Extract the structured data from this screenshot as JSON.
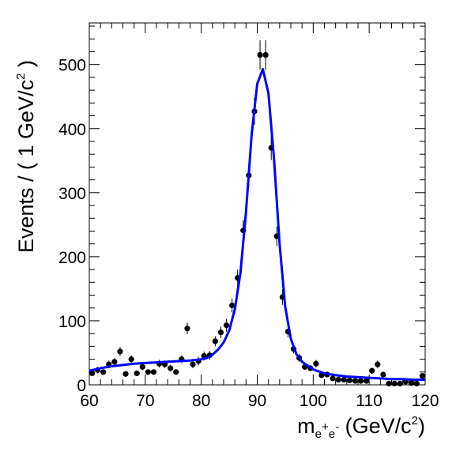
{
  "chart_data": {
    "type": "scatter",
    "xlabel": {
      "main": "m",
      "sub1": "e",
      "sup1": "+",
      "sub2": "e",
      "sup2": "-",
      "unit": " (GeV/c",
      "unit_sup": "2",
      "unit_end": ")"
    },
    "ylabel": {
      "main": "Events / ( 1 GeV/c",
      "sup": "2",
      "end": " )"
    },
    "xlim": [
      60,
      120
    ],
    "ylim": [
      0,
      565
    ],
    "x_ticks": [
      60,
      70,
      80,
      90,
      100,
      110,
      120
    ],
    "y_ticks": [
      0,
      100,
      200,
      300,
      400,
      500
    ],
    "grid": false,
    "colors": {
      "points": "#000000",
      "fit": "#0000ff",
      "axes": "#000000"
    },
    "series": [
      {
        "type": "scatter_errorbars",
        "x": [
          60.5,
          61.5,
          62.5,
          63.5,
          64.5,
          65.5,
          66.5,
          67.5,
          68.5,
          69.5,
          70.5,
          71.5,
          72.5,
          73.5,
          74.5,
          75.5,
          76.5,
          77.5,
          78.5,
          79.5,
          80.5,
          81.5,
          82.5,
          83.5,
          84.5,
          85.5,
          86.5,
          87.5,
          88.5,
          89.5,
          90.5,
          91.5,
          92.5,
          93.5,
          94.5,
          95.5,
          96.5,
          97.5,
          98.5,
          99.5,
          100.5,
          101.5,
          102.5,
          103.5,
          104.5,
          105.5,
          106.5,
          107.5,
          108.5,
          109.5,
          110.5,
          111.5,
          112.5,
          113.5,
          114.5,
          115.5,
          116.5,
          117.5,
          118.5,
          119.5
        ],
        "y": [
          18,
          23,
          20,
          32,
          36,
          52,
          17,
          40,
          18,
          28,
          20,
          20,
          33,
          32,
          26,
          20,
          40,
          88,
          32,
          37,
          45,
          46,
          68,
          82,
          93,
          124,
          167,
          241,
          327,
          427,
          515,
          515,
          370,
          232,
          137,
          83,
          56,
          42,
          28,
          26,
          33,
          15,
          16,
          10,
          8,
          8,
          7,
          6,
          6,
          6,
          22,
          32,
          16,
          2,
          2,
          2,
          5,
          3,
          2,
          14
        ],
        "yerr": [
          4,
          5,
          4,
          6,
          6,
          7,
          4,
          6,
          4,
          5,
          4,
          4,
          6,
          6,
          5,
          4,
          6,
          9,
          6,
          6,
          7,
          7,
          8,
          9,
          10,
          11,
          13,
          16,
          18,
          21,
          23,
          23,
          19,
          15,
          12,
          9,
          7,
          6,
          5,
          5,
          6,
          4,
          4,
          3,
          3,
          3,
          3,
          2,
          2,
          2,
          5,
          6,
          4,
          1,
          1,
          1,
          2,
          2,
          1,
          4
        ]
      },
      {
        "type": "line",
        "name": "",
        "x": [
          60,
          62,
          64,
          66,
          68,
          70,
          72,
          74,
          76,
          78,
          80,
          81,
          82,
          83,
          84,
          85,
          86,
          87,
          88,
          89,
          90,
          91,
          92,
          93,
          94,
          95,
          96,
          97,
          98,
          100,
          102,
          104,
          106,
          108,
          110,
          112,
          114,
          116,
          118,
          120
        ],
        "y": [
          22,
          26,
          29,
          31,
          33,
          34,
          35,
          36,
          37,
          38,
          40,
          42,
          47,
          55,
          66,
          85,
          118,
          175,
          270,
          390,
          470,
          493,
          455,
          352,
          220,
          122,
          72,
          48,
          36,
          24,
          18,
          15,
          13,
          12,
          11,
          10,
          9,
          9,
          8,
          8
        ]
      }
    ]
  }
}
